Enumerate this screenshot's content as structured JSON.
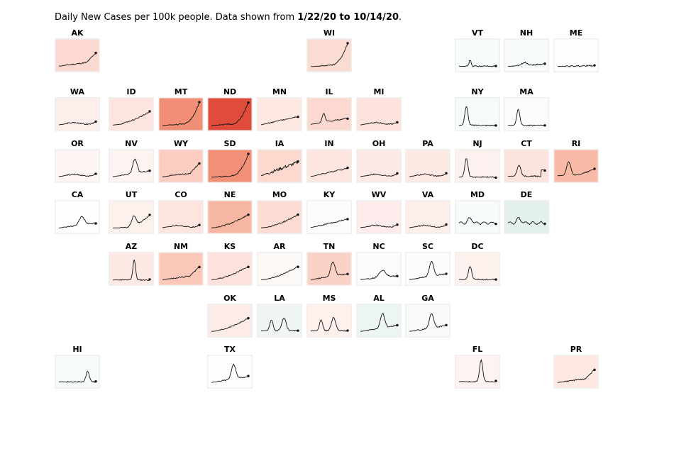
{
  "caption": {
    "prefix": "Daily New Cases per 100k people. Data shown from ",
    "start": "1/22/20",
    "mid": " to ",
    "end": "10/14/20",
    "suffix": "."
  },
  "colors": {
    "line": "#111111",
    "tile_border": "#efefef",
    "high": "#de3b2e",
    "mid": "#f8c6b6",
    "low": "#f6fbf9",
    "cool": "#e4f0ed"
  },
  "chart_data": {
    "type": "small-multiples",
    "date_range": [
      "1/22/20",
      "10/14/20"
    ],
    "metric": "Daily New Cases per 100k people",
    "states": [
      {
        "code": "AK",
        "row": 0,
        "col": 0,
        "fill": "#fbd9d0",
        "shape": "late"
      },
      {
        "code": "WI",
        "row": 0,
        "col": 5,
        "fill": "#fbdcd3",
        "shape": "steep"
      },
      {
        "code": "VT",
        "row": 0,
        "col": 8,
        "fill": "#f7fbfa",
        "shape": "tiny"
      },
      {
        "code": "NH",
        "row": 0,
        "col": 9,
        "fill": "#f6faf8",
        "shape": "small"
      },
      {
        "code": "ME",
        "row": 0,
        "col": 10,
        "fill": "#fdfdfd",
        "shape": "flat"
      },
      {
        "code": "WA",
        "row": 1,
        "col": 0,
        "fill": "#fdeeeb",
        "shape": "lowwave"
      },
      {
        "code": "ID",
        "row": 1,
        "col": 1,
        "fill": "#fde4de",
        "shape": "rise"
      },
      {
        "code": "MT",
        "row": 1,
        "col": 2,
        "fill": "#f08f76",
        "shape": "steep"
      },
      {
        "code": "ND",
        "row": 1,
        "col": 3,
        "fill": "#df4c3c",
        "shape": "steep"
      },
      {
        "code": "MN",
        "row": 1,
        "col": 4,
        "fill": "#fde8e2",
        "shape": "steady"
      },
      {
        "code": "IL",
        "row": 1,
        "col": 5,
        "fill": "#fbd9d0",
        "shape": "wave"
      },
      {
        "code": "MI",
        "row": 1,
        "col": 6,
        "fill": "#fde3dc",
        "shape": "lowwave"
      },
      {
        "code": "NY",
        "row": 1,
        "col": 8,
        "fill": "#f5fbf9",
        "shape": "earlypeak"
      },
      {
        "code": "MA",
        "row": 1,
        "col": 9,
        "fill": "#fcfcfc",
        "shape": "earlypeak2"
      },
      {
        "code": "OR",
        "row": 2,
        "col": 0,
        "fill": "#fdf6f4",
        "shape": "lowwave"
      },
      {
        "code": "NV",
        "row": 2,
        "col": 1,
        "fill": "#fdf4f2",
        "shape": "summer"
      },
      {
        "code": "WY",
        "row": 2,
        "col": 2,
        "fill": "#fbcdc0",
        "shape": "late"
      },
      {
        "code": "SD",
        "row": 2,
        "col": 3,
        "fill": "#f28f77",
        "shape": "steep"
      },
      {
        "code": "IA",
        "row": 2,
        "col": 4,
        "fill": "#fcd8ce",
        "shape": "noisy"
      },
      {
        "code": "IN",
        "row": 2,
        "col": 5,
        "fill": "#fde6e0",
        "shape": "steady"
      },
      {
        "code": "OH",
        "row": 2,
        "col": 6,
        "fill": "#fdeae6",
        "shape": "lowwave"
      },
      {
        "code": "PA",
        "row": 2,
        "col": 7,
        "fill": "#fde9e4",
        "shape": "lowwave"
      },
      {
        "code": "NJ",
        "row": 2,
        "col": 8,
        "fill": "#fdf1ef",
        "shape": "earlypeak"
      },
      {
        "code": "CT",
        "row": 2,
        "col": 9,
        "fill": "#fde3dd",
        "shape": "earlypeak3"
      },
      {
        "code": "RI",
        "row": 2,
        "col": 10,
        "fill": "#f8b9a6",
        "shape": "rhode"
      },
      {
        "code": "CA",
        "row": 3,
        "col": 0,
        "fill": "#fdfdfd",
        "shape": "summer2"
      },
      {
        "code": "UT",
        "row": 3,
        "col": 1,
        "fill": "#fdf1ee",
        "shape": "utah"
      },
      {
        "code": "CO",
        "row": 3,
        "col": 2,
        "fill": "#fde4de",
        "shape": "lowwave"
      },
      {
        "code": "NE",
        "row": 3,
        "col": 3,
        "fill": "#f8b7a3",
        "shape": "rise"
      },
      {
        "code": "MO",
        "row": 3,
        "col": 4,
        "fill": "#fddcd4",
        "shape": "rise"
      },
      {
        "code": "KY",
        "row": 3,
        "col": 5,
        "fill": "#fcfcfc",
        "shape": "steady"
      },
      {
        "code": "WV",
        "row": 3,
        "col": 6,
        "fill": "#fdeceb",
        "shape": "lowwave"
      },
      {
        "code": "VA",
        "row": 3,
        "col": 7,
        "fill": "#fdeeea",
        "shape": "lowwave"
      },
      {
        "code": "MD",
        "row": 3,
        "col": 8,
        "fill": "#f6faf9",
        "shape": "bumpy"
      },
      {
        "code": "DE",
        "row": 3,
        "col": 9,
        "fill": "#e3f0ec",
        "shape": "bumpy"
      },
      {
        "code": "AZ",
        "row": 4,
        "col": 1,
        "fill": "#fdeae5",
        "shape": "azpeak"
      },
      {
        "code": "NM",
        "row": 4,
        "col": 2,
        "fill": "#fbc8b9",
        "shape": "late"
      },
      {
        "code": "KS",
        "row": 4,
        "col": 3,
        "fill": "#fde2db",
        "shape": "rise"
      },
      {
        "code": "AR",
        "row": 4,
        "col": 4,
        "fill": "#fcf8f5",
        "shape": "rise"
      },
      {
        "code": "TN",
        "row": 4,
        "col": 5,
        "fill": "#fbd1c6",
        "shape": "summer"
      },
      {
        "code": "NC",
        "row": 4,
        "col": 6,
        "fill": "#fbfcfb",
        "shape": "lowhump"
      },
      {
        "code": "SC",
        "row": 4,
        "col": 7,
        "fill": "#fcfcfc",
        "shape": "summer"
      },
      {
        "code": "DC",
        "row": 4,
        "col": 8,
        "fill": "#fdf1ee",
        "shape": "earlypeak4"
      },
      {
        "code": "OK",
        "row": 5,
        "col": 3,
        "fill": "#fdebe7",
        "shape": "rise"
      },
      {
        "code": "LA",
        "row": 5,
        "col": 4,
        "fill": "#eef5f3",
        "shape": "la"
      },
      {
        "code": "MS",
        "row": 5,
        "col": 5,
        "fill": "#fdf0ed",
        "shape": "la"
      },
      {
        "code": "AL",
        "row": 5,
        "col": 6,
        "fill": "#edf5f3",
        "shape": "summer"
      },
      {
        "code": "GA",
        "row": 5,
        "col": 7,
        "fill": "#f7faf9",
        "shape": "summer"
      },
      {
        "code": "HI",
        "row": 6,
        "col": 0,
        "fill": "#f6faf8",
        "shape": "hawaii"
      },
      {
        "code": "TX",
        "row": 6,
        "col": 3,
        "fill": "#fdfdfd",
        "shape": "summer"
      },
      {
        "code": "FL",
        "row": 6,
        "col": 8,
        "fill": "#fdf3f0",
        "shape": "flpeak"
      },
      {
        "code": "PR",
        "row": 6,
        "col": 10,
        "fill": "#fde8e2",
        "shape": "late"
      }
    ]
  }
}
